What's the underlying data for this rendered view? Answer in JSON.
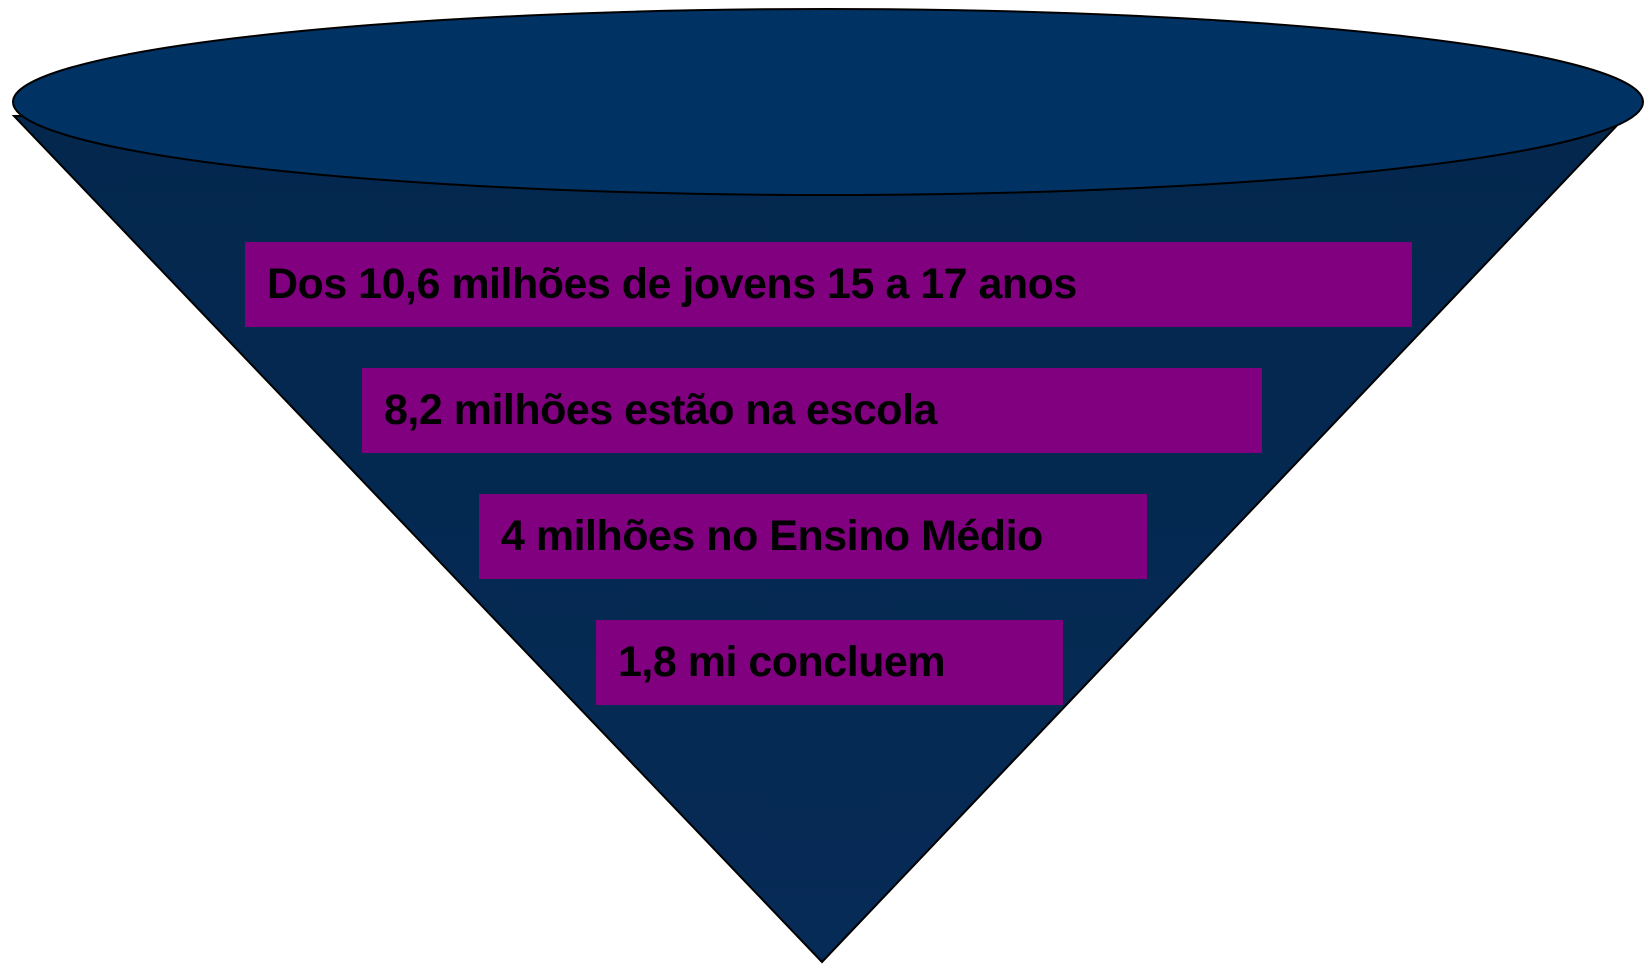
{
  "funnel": {
    "colors": {
      "body": "#04294f",
      "body_gradient_bottom": "#062a55",
      "rim": "#013264",
      "outline": "#000000",
      "label_fill": "#800080",
      "label_text": "#000000"
    },
    "levels": [
      {
        "label": "Dos 10,6 milhões de jovens 15 a 17 anos"
      },
      {
        "label": "8,2 milhões estão na escola"
      },
      {
        "label": "4 milhões no Ensino Médio"
      },
      {
        "label": "1,8 mi concluem"
      }
    ]
  }
}
